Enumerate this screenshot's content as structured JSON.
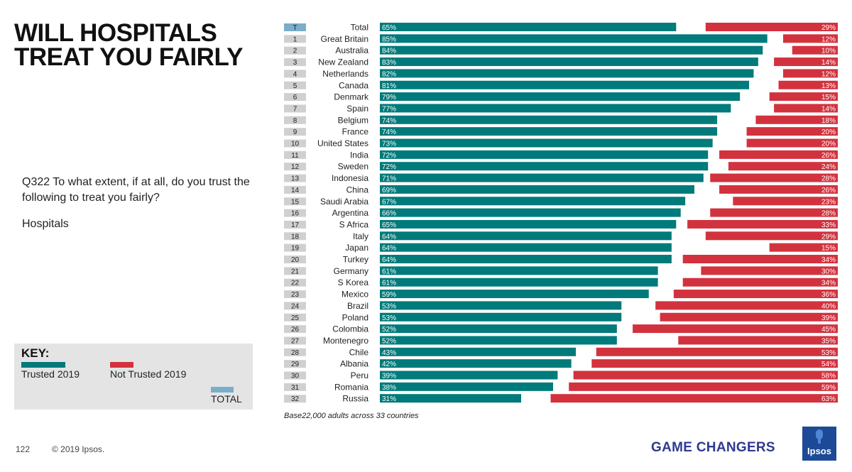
{
  "title": "WILL HOSPITALS TREAT YOU FAIRLY",
  "question": "Q322 To what extent, if at all, do you trust the following to treat you fairly?",
  "subject": "Hospitals",
  "key": {
    "title": "KEY:",
    "trusted": "Trusted 2019",
    "not_trusted": "Not Trusted 2019",
    "total": "TOTAL"
  },
  "base_note": "Base22,000 adults across 33 countries",
  "footer": {
    "page_number": "122",
    "copyright": "© 2019 Ipsos.",
    "tagline": "GAME CHANGERS",
    "logo_text": "Ipsos"
  },
  "colors": {
    "trusted": "#007a7a",
    "not_trusted": "#d2323e",
    "total_rank": "#7aaec9",
    "rank_box": "#d0d0d0",
    "brand_blue": "#1c4a96"
  },
  "chart_data": {
    "type": "bar",
    "orientation": "horizontal",
    "diverging": true,
    "value_format": "percent",
    "xlim": [
      0,
      100
    ],
    "grid": false,
    "series": [
      {
        "name": "Trusted 2019"
      },
      {
        "name": "Not Trusted 2019"
      }
    ],
    "rows": [
      {
        "rank": "T",
        "country": "Total",
        "trusted": 65,
        "not_trusted": 29
      },
      {
        "rank": "1",
        "country": "Great Britain",
        "trusted": 85,
        "not_trusted": 12
      },
      {
        "rank": "2",
        "country": "Australia",
        "trusted": 84,
        "not_trusted": 10
      },
      {
        "rank": "3",
        "country": "New Zealand",
        "trusted": 83,
        "not_trusted": 14
      },
      {
        "rank": "4",
        "country": "Netherlands",
        "trusted": 82,
        "not_trusted": 12
      },
      {
        "rank": "5",
        "country": "Canada",
        "trusted": 81,
        "not_trusted": 13
      },
      {
        "rank": "6",
        "country": "Denmark",
        "trusted": 79,
        "not_trusted": 15
      },
      {
        "rank": "7",
        "country": "Spain",
        "trusted": 77,
        "not_trusted": 14
      },
      {
        "rank": "8",
        "country": "Belgium",
        "trusted": 74,
        "not_trusted": 18
      },
      {
        "rank": "9",
        "country": "France",
        "trusted": 74,
        "not_trusted": 20
      },
      {
        "rank": "10",
        "country": "United States",
        "trusted": 73,
        "not_trusted": 20
      },
      {
        "rank": "11",
        "country": "India",
        "trusted": 72,
        "not_trusted": 26
      },
      {
        "rank": "12",
        "country": "Sweden",
        "trusted": 72,
        "not_trusted": 24
      },
      {
        "rank": "13",
        "country": "Indonesia",
        "trusted": 71,
        "not_trusted": 28
      },
      {
        "rank": "14",
        "country": "China",
        "trusted": 69,
        "not_trusted": 26
      },
      {
        "rank": "15",
        "country": "Saudi Arabia",
        "trusted": 67,
        "not_trusted": 23
      },
      {
        "rank": "16",
        "country": "Argentina",
        "trusted": 66,
        "not_trusted": 28
      },
      {
        "rank": "17",
        "country": "S Africa",
        "trusted": 65,
        "not_trusted": 33
      },
      {
        "rank": "18",
        "country": "Italy",
        "trusted": 64,
        "not_trusted": 29
      },
      {
        "rank": "19",
        "country": "Japan",
        "trusted": 64,
        "not_trusted": 15
      },
      {
        "rank": "20",
        "country": "Turkey",
        "trusted": 64,
        "not_trusted": 34
      },
      {
        "rank": "21",
        "country": "Germany",
        "trusted": 61,
        "not_trusted": 30
      },
      {
        "rank": "22",
        "country": "S Korea",
        "trusted": 61,
        "not_trusted": 34
      },
      {
        "rank": "23",
        "country": "Mexico",
        "trusted": 59,
        "not_trusted": 36
      },
      {
        "rank": "24",
        "country": "Brazil",
        "trusted": 53,
        "not_trusted": 40
      },
      {
        "rank": "25",
        "country": "Poland",
        "trusted": 53,
        "not_trusted": 39
      },
      {
        "rank": "26",
        "country": "Colombia",
        "trusted": 52,
        "not_trusted": 45
      },
      {
        "rank": "27",
        "country": "Montenegro",
        "trusted": 52,
        "not_trusted": 35
      },
      {
        "rank": "28",
        "country": "Chile",
        "trusted": 43,
        "not_trusted": 53
      },
      {
        "rank": "29",
        "country": "Albania",
        "trusted": 42,
        "not_trusted": 54
      },
      {
        "rank": "30",
        "country": "Peru",
        "trusted": 39,
        "not_trusted": 58
      },
      {
        "rank": "31",
        "country": "Romania",
        "trusted": 38,
        "not_trusted": 59
      },
      {
        "rank": "32",
        "country": "Russia",
        "trusted": 31,
        "not_trusted": 63
      }
    ]
  }
}
